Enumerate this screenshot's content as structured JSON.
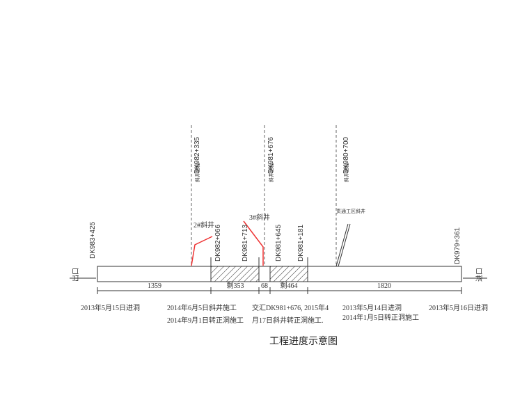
{
  "chainages": {
    "exit_start": "DK983+425",
    "shaft2_center": "DK982+335",
    "shaft2_face": "DK982+066",
    "face_a": "DK981+713",
    "shaft3_center": "DK981+676",
    "face_b": "DK981+645",
    "face_c": "DK981+181",
    "shaft_exit_center": "DK980+700",
    "entry_end": "DK979+361",
    "shaft_tag": "斜井里程"
  },
  "labels": {
    "exit": "出口",
    "entry": "进口",
    "shaft2": "2#斜井",
    "shaft3": "3#斜井",
    "shaft_exit": "贯通工区斜井"
  },
  "dimensions": [
    "1359",
    "剩353",
    "68",
    "剩464",
    "1820"
  ],
  "notes": {
    "exit": "2013年5月15日进洞",
    "shaft2_line1": "2014年6月5日斜井施工",
    "shaft2_line2": "2014年9月1日转正洞施工",
    "shaft3_line1": "交汇DK981+676, 2015年4",
    "shaft3_line2": "月17日斜井转正洞施工.",
    "shaft_exit_line1": "2013年5月14日进洞",
    "shaft_exit_line2": "2014年1月5日转正洞施工",
    "entry": "2013年5月16日进洞"
  },
  "title": "工程进度示意图"
}
